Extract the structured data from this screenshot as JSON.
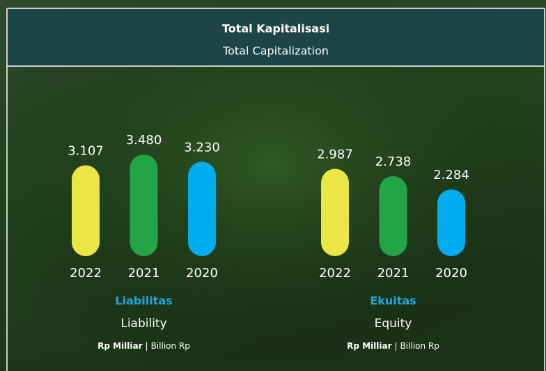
{
  "header": {
    "title": "Total Kapitalisasi",
    "subtitle": "Total Capitalization"
  },
  "chart_data": [
    {
      "type": "bar",
      "title": "Liabilitas",
      "subtitle": "Liability",
      "unit": "Rp Milliar",
      "unit_en": "Billion Rp",
      "categories": [
        "2022",
        "2021",
        "2020"
      ],
      "values": [
        3107,
        3480,
        3230
      ],
      "value_labels": [
        "3.107",
        "3.480",
        "3.230"
      ],
      "colors": [
        "#e9e645",
        "#22a447",
        "#00aeef"
      ]
    },
    {
      "type": "bar",
      "title": "Ekuitas",
      "subtitle": "Equity",
      "unit": "Rp Milliar",
      "unit_en": "Billion Rp",
      "categories": [
        "2022",
        "2021",
        "2020"
      ],
      "values": [
        2987,
        2738,
        2284
      ],
      "value_labels": [
        "2.987",
        "2.738",
        "2.284"
      ],
      "colors": [
        "#e9e645",
        "#22a447",
        "#00aeef"
      ]
    }
  ]
}
